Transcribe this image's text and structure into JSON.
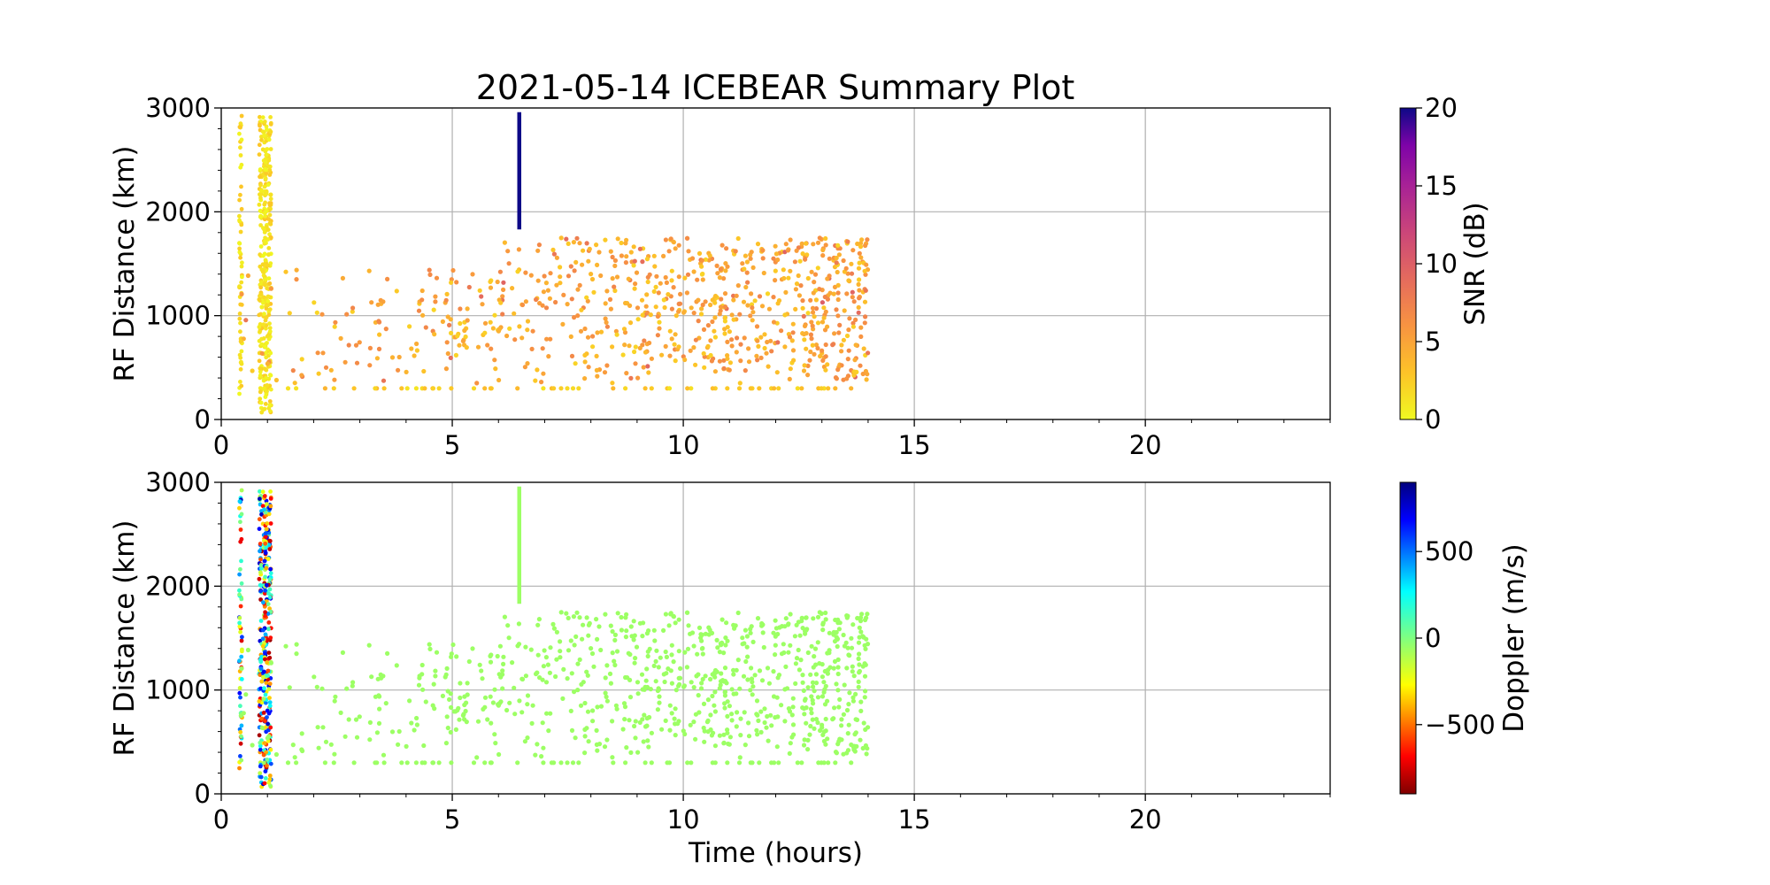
{
  "figure": {
    "title": "2021-05-14 ICEBEAR Summary Plot"
  },
  "chart_data": [
    {
      "type": "scatter",
      "panel": "top",
      "color_by": "snr",
      "xlabel": "",
      "ylabel": "RF Distance (km)",
      "xlim": [
        0,
        24
      ],
      "ylim": [
        0,
        3000
      ],
      "xticks": [
        "0",
        "5",
        "10",
        "15",
        "20"
      ],
      "yticks": [
        "0",
        "1000",
        "2000",
        "3000"
      ],
      "grid": true,
      "colorbar": {
        "label": "SNR (dB)",
        "range": [
          0,
          20
        ],
        "ticks": [
          "0",
          "5",
          "10",
          "15",
          "20"
        ],
        "colormap": "plasma_r"
      },
      "dense_columns_hours": [
        0.42,
        0.85,
        0.95,
        1.05
      ],
      "streak": {
        "x": 6.45,
        "y": [
          1830,
          2960
        ],
        "snr": 20
      },
      "floor_row_km": 300,
      "scatter_span_hours": [
        0,
        14
      ],
      "scatter_span_km": [
        300,
        1900
      ],
      "typical_snr": [
        0,
        6
      ]
    },
    {
      "type": "scatter",
      "panel": "bottom",
      "color_by": "doppler",
      "xlabel": "Time (hours)",
      "ylabel": "RF Distance (km)",
      "xlim": [
        0,
        24
      ],
      "ylim": [
        0,
        3000
      ],
      "xticks": [
        "0",
        "5",
        "10",
        "15",
        "20"
      ],
      "yticks": [
        "0",
        "1000",
        "2000",
        "3000"
      ],
      "grid": true,
      "colorbar": {
        "label": "Doppler (m/s)",
        "range": [
          -900,
          900
        ],
        "ticks": [
          "−500",
          "0",
          "500"
        ],
        "tick_values": [
          -500,
          0,
          500
        ],
        "colormap": "jet_r"
      },
      "dense_columns_hours": [
        0.42,
        0.85,
        0.95,
        1.05
      ],
      "streak": {
        "x": 6.45,
        "y": [
          1830,
          2960
        ],
        "doppler": -60
      },
      "floor_row_km": 300,
      "scatter_span_hours": [
        0,
        14
      ],
      "scatter_span_km": [
        300,
        1900
      ],
      "typical_doppler": -60
    }
  ]
}
